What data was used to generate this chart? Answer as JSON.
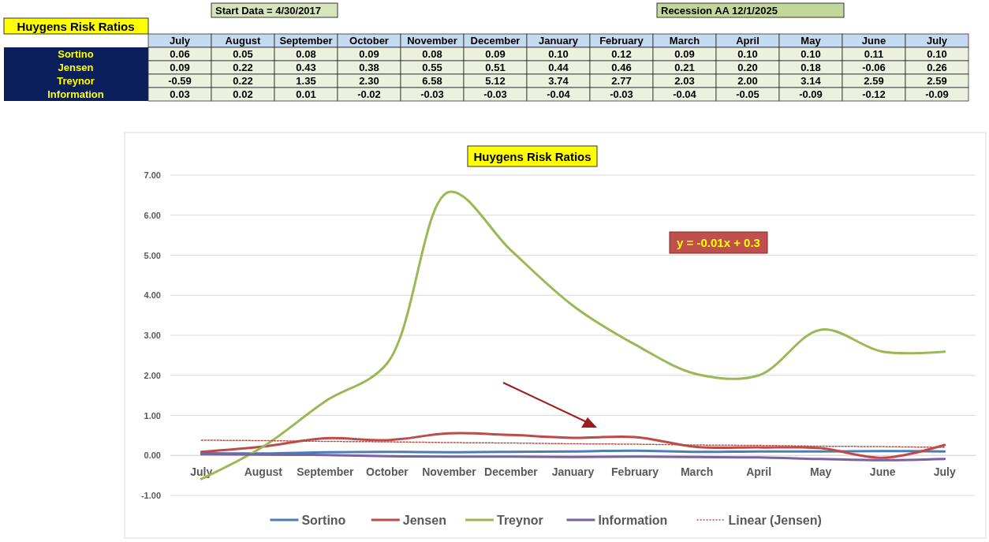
{
  "chart_data": {
    "type": "line",
    "title": "Huygens Risk Ratios",
    "categories": [
      "July",
      "August",
      "September",
      "October",
      "November",
      "December",
      "January",
      "February",
      "March",
      "April",
      "May",
      "June",
      "July"
    ],
    "series": [
      {
        "name": "Sortino",
        "color": "#4a7ebb",
        "values": [
          0.06,
          0.05,
          0.08,
          0.09,
          0.08,
          0.09,
          0.1,
          0.12,
          0.09,
          0.1,
          0.1,
          0.11,
          0.1
        ],
        "value_labels": [
          "0.06",
          "0.05",
          "0.08",
          "0.09",
          "0.08",
          "0.09",
          "0.10",
          "0.12",
          "0.09",
          "0.10",
          "0.10",
          "0.11",
          "0.10"
        ]
      },
      {
        "name": "Jensen",
        "color": "#be4b48",
        "values": [
          0.09,
          0.22,
          0.43,
          0.38,
          0.55,
          0.51,
          0.44,
          0.46,
          0.21,
          0.2,
          0.18,
          -0.06,
          0.26
        ],
        "value_labels": [
          "0.09",
          "0.22",
          "0.43",
          "0.38",
          "0.55",
          "0.51",
          "0.44",
          "0.46",
          "0.21",
          "0.20",
          "0.18",
          "-0.06",
          "0.26"
        ]
      },
      {
        "name": "Treynor",
        "color": "#98b954",
        "values": [
          -0.59,
          0.22,
          1.35,
          2.3,
          6.58,
          5.12,
          3.74,
          2.77,
          2.03,
          2.0,
          3.14,
          2.59,
          2.59
        ],
        "value_labels": [
          "-0.59",
          "0.22",
          "1.35",
          "2.30",
          "6.58",
          "5.12",
          "3.74",
          "2.77",
          "2.03",
          "2.00",
          "3.14",
          "2.59",
          "2.59"
        ]
      },
      {
        "name": "Information",
        "color": "#7d60a0",
        "values": [
          0.03,
          0.02,
          0.01,
          -0.02,
          -0.03,
          -0.03,
          -0.04,
          -0.03,
          -0.04,
          -0.05,
          -0.09,
          -0.12,
          -0.09
        ],
        "value_labels": [
          "0.03",
          "0.02",
          "0.01",
          "-0.02",
          "-0.03",
          "-0.03",
          "-0.04",
          "-0.03",
          "-0.04",
          "-0.05",
          "-0.09",
          "-0.12",
          "-0.09"
        ]
      },
      {
        "name": "Linear (Jensen)",
        "color": "#be4b48",
        "type": "line",
        "line_style": "dotted",
        "values": [
          0.38,
          0.37,
          0.35,
          0.34,
          0.32,
          0.31,
          0.29,
          0.28,
          0.26,
          0.25,
          0.23,
          0.22,
          0.2
        ]
      }
    ],
    "ylim": [
      -1,
      7
    ],
    "yticks": [
      {
        "value": -1,
        "label": "-1.00"
      },
      {
        "value": 0,
        "label": "0.00"
      },
      {
        "value": 1,
        "label": "1.00"
      },
      {
        "value": 2,
        "label": "2.00"
      },
      {
        "value": 3,
        "label": "3.00"
      },
      {
        "value": 4,
        "label": "4.00"
      },
      {
        "value": 5,
        "label": "5.00"
      },
      {
        "value": 6,
        "label": "6.00"
      },
      {
        "value": 7,
        "label": "7.00"
      }
    ],
    "grid": "y",
    "legend": "bottom",
    "marker": "none",
    "line_style": "solid",
    "annotations": [
      "Huygens Risk Ratios",
      "Start Data = 4/30/2017",
      "Recession AA 12/1/2025",
      "y = -0.01x + 0.3"
    ]
  }
}
